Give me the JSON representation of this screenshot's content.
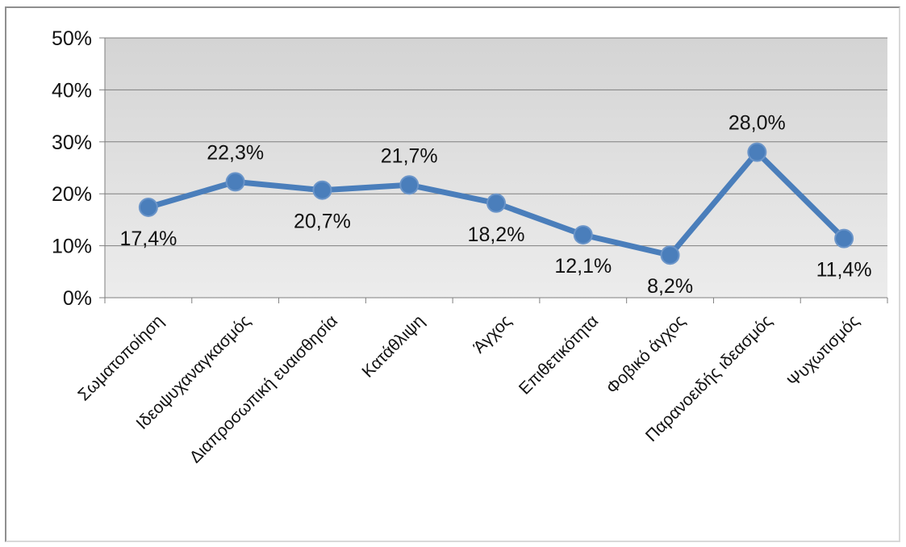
{
  "chart_data": {
    "type": "line",
    "categories": [
      "Σωματοποίηση",
      "Ιδεοψυχαναγκασμός",
      "Διαπροσωπική ευαισθησία",
      "Κατάθλιψη",
      "Άγχος",
      "Επιθετικότητα",
      "Φοβικό άγχος",
      "Παρανοειδής ιδεασμός",
      "Ψυχωτισμός"
    ],
    "values": [
      17.4,
      22.3,
      20.7,
      21.7,
      18.2,
      12.1,
      8.2,
      28.0,
      11.4
    ],
    "data_labels": [
      "17,4%",
      "22,3%",
      "20,7%",
      "21,7%",
      "18,2%",
      "12,1%",
      "8,2%",
      "28,0%",
      "11,4%"
    ],
    "y_ticks": [
      "0%",
      "10%",
      "20%",
      "30%",
      "40%",
      "50%"
    ],
    "ylim": [
      0,
      50
    ],
    "title": "",
    "xlabel": "",
    "ylabel": "",
    "grid": true,
    "legend": "none",
    "colors": {
      "line": "#4a7ebb",
      "marker": "#4a7ebb",
      "plot_background": "#e0e0e0",
      "gridline": "#7f7f7f",
      "axis": "#7f7f7f"
    }
  }
}
